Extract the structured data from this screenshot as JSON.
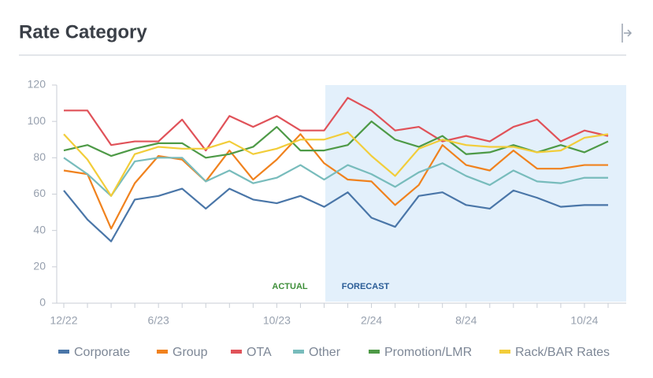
{
  "chart_data": {
    "type": "line",
    "title": "Rate Category",
    "annotations": [
      "ACTUAL",
      "FORECAST"
    ],
    "categories": [
      "12/22",
      null,
      null,
      null,
      "6/23",
      null,
      null,
      null,
      null,
      "10/23",
      null,
      null,
      null,
      "2/24",
      null,
      null,
      null,
      "8/24",
      null,
      null,
      null,
      null,
      "10/24",
      null
    ],
    "series": [
      {
        "name": "Corporate",
        "color": "#4a76a8",
        "values": [
          62,
          46,
          34,
          57,
          59,
          63,
          52,
          63,
          57,
          55,
          59,
          53,
          61,
          47,
          42,
          59,
          61,
          54,
          52,
          62,
          58,
          53,
          54,
          54
        ]
      },
      {
        "name": "Group",
        "color": "#f0821e",
        "values": [
          73,
          71,
          41,
          66,
          81,
          79,
          67,
          84,
          68,
          79,
          93,
          77,
          68,
          67,
          54,
          65,
          87,
          76,
          73,
          84,
          74,
          74,
          76,
          76
        ]
      },
      {
        "name": "OTA",
        "color": "#e05259",
        "values": [
          106,
          106,
          87,
          89,
          89,
          101,
          84,
          103,
          97,
          103,
          95,
          95,
          113,
          106,
          95,
          97,
          89,
          92,
          89,
          97,
          101,
          89,
          95,
          92
        ]
      },
      {
        "name": "Other",
        "color": "#78bcbc",
        "values": [
          80,
          71,
          59,
          78,
          80,
          80,
          67,
          73,
          66,
          69,
          76,
          68,
          76,
          71,
          64,
          72,
          77,
          70,
          65,
          73,
          67,
          66,
          69,
          69
        ]
      },
      {
        "name": "Promotion/LMR",
        "color": "#4e9a47",
        "values": [
          84,
          87,
          81,
          85,
          88,
          88,
          80,
          82,
          86,
          97,
          84,
          84,
          87,
          100,
          90,
          86,
          92,
          82,
          83,
          87,
          83,
          87,
          83,
          89
        ]
      },
      {
        "name": "Rack/BAR Rates",
        "color": "#f2cd3a",
        "values": [
          93,
          79,
          59,
          82,
          86,
          85,
          85,
          89,
          82,
          85,
          90,
          90,
          94,
          81,
          70,
          85,
          90,
          87,
          86,
          86,
          83,
          84,
          91,
          93
        ]
      }
    ],
    "ylim": [
      0,
      120
    ],
    "yticks": [
      0,
      20,
      40,
      60,
      80,
      100,
      120
    ],
    "legend": "bottom"
  }
}
